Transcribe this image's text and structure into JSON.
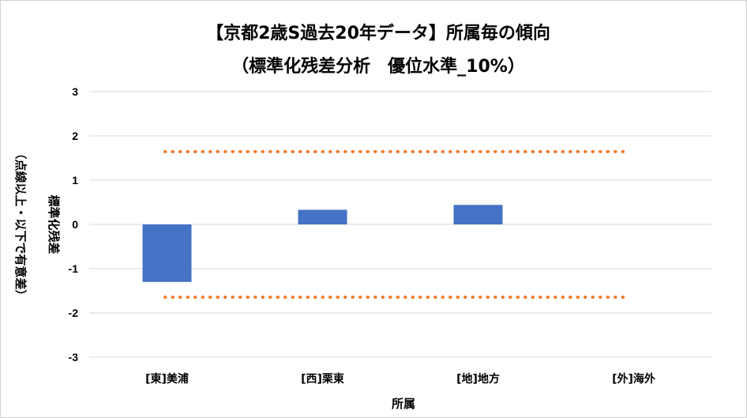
{
  "chart_data": {
    "type": "bar",
    "title_line1": "【京都2歳S過去20年データ】所属毎の傾向",
    "title_line2": "（標準化残差分析　優位水準_10%）",
    "xlabel": "所属",
    "ylabel_line1": "標準化残差",
    "ylabel_line2": "（点線以上・以下で有意差）",
    "categories": [
      "[東]美浦",
      "[西]栗東",
      "[地]地方",
      "[外]海外"
    ],
    "values": [
      -1.3,
      0.33,
      0.44,
      null
    ],
    "ylim": [
      -3,
      3
    ],
    "yticks": [
      3,
      2,
      1,
      0,
      -1,
      -2,
      -3
    ],
    "threshold_upper": 1.645,
    "threshold_lower": -1.645,
    "grid": true,
    "legend": "none",
    "colors": {
      "bar": "#4472c4",
      "threshold": "#ed7d31",
      "grid": "#d9d9d9"
    }
  }
}
